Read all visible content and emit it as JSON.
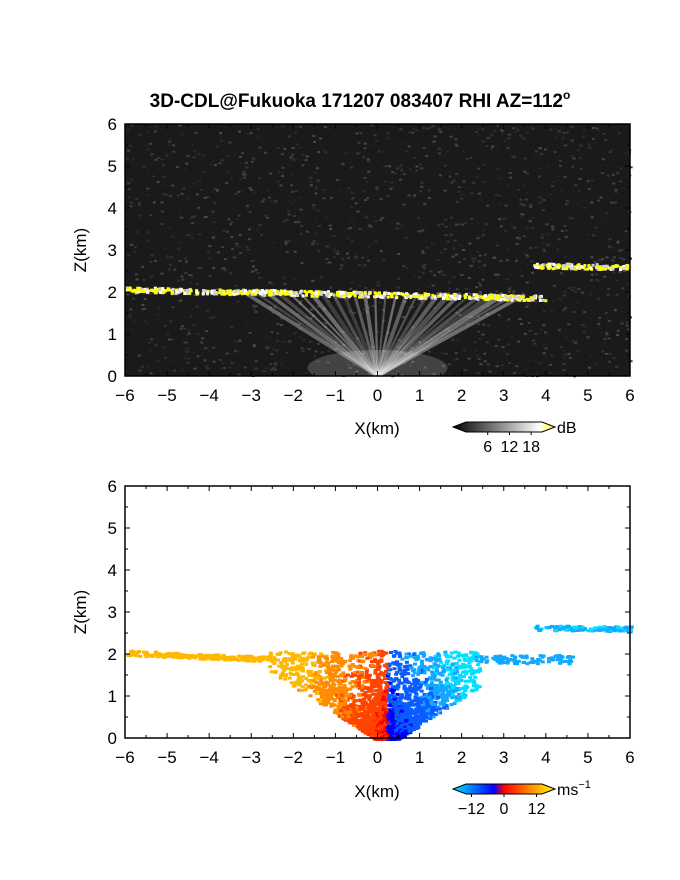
{
  "chart_data": [
    {
      "type": "heatmap",
      "title": "3D-CDL@Fukuoka 171207 083407 RHI AZ=112",
      "title_superscript": "o",
      "xlabel": "X(km)",
      "ylabel": "Z(km)",
      "xlim": [
        -6,
        6
      ],
      "ylim": [
        0,
        6
      ],
      "xticks": [
        "-6",
        "-5",
        "-4",
        "-3",
        "-2",
        "-1",
        "0",
        "1",
        "2",
        "3",
        "4",
        "5",
        "6"
      ],
      "yticks": [
        "0",
        "1",
        "2",
        "3",
        "4",
        "5",
        "6"
      ],
      "colorbar": {
        "unit": "dB",
        "ticks": [
          "6",
          "12",
          "18"
        ],
        "tick_values": [
          6,
          12,
          18
        ],
        "range": [
          0,
          21
        ],
        "colors": [
          "#000000",
          "#ffffff",
          "#ffff00"
        ]
      },
      "features": [
        {
          "kind": "layer",
          "x": [
            -6,
            4.0
          ],
          "z": [
            2.08,
            1.88
          ],
          "description": "bright band"
        },
        {
          "kind": "layer",
          "x": [
            3.7,
            6.0
          ],
          "z": [
            2.65,
            2.62
          ],
          "description": "upper band"
        },
        {
          "kind": "fan",
          "origin": [
            0,
            0
          ],
          "top_z": 2.0
        }
      ]
    },
    {
      "type": "heatmap",
      "title": "",
      "xlabel": "X(km)",
      "ylabel": "Z(km)",
      "xlim": [
        -6,
        6
      ],
      "ylim": [
        0,
        6
      ],
      "xticks": [
        "-6",
        "-5",
        "-4",
        "-3",
        "-2",
        "-1",
        "0",
        "1",
        "2",
        "3",
        "4",
        "5",
        "6"
      ],
      "yticks": [
        "0",
        "1",
        "2",
        "3",
        "4",
        "5",
        "6"
      ],
      "colorbar": {
        "unit": "ms",
        "unit_superscript": "−1",
        "ticks": [
          "−12",
          "0",
          "12"
        ],
        "tick_values": [
          -12,
          0,
          12
        ],
        "range": [
          -14,
          14
        ],
        "colors": [
          "#00e5ff",
          "#0000ff",
          "#ff0000",
          "#ffff00"
        ]
      },
      "features": [
        {
          "kind": "layer",
          "x": [
            -6,
            -2.5
          ],
          "z": [
            2.05,
            1.9
          ],
          "value": 11
        },
        {
          "kind": "layer",
          "x": [
            3.7,
            6.0
          ],
          "z": [
            2.65,
            2.62
          ],
          "value": -11
        },
        {
          "kind": "cone",
          "x": [
            -3,
            2
          ],
          "z": [
            0,
            2.1
          ],
          "split_x": 0.2
        }
      ]
    }
  ]
}
